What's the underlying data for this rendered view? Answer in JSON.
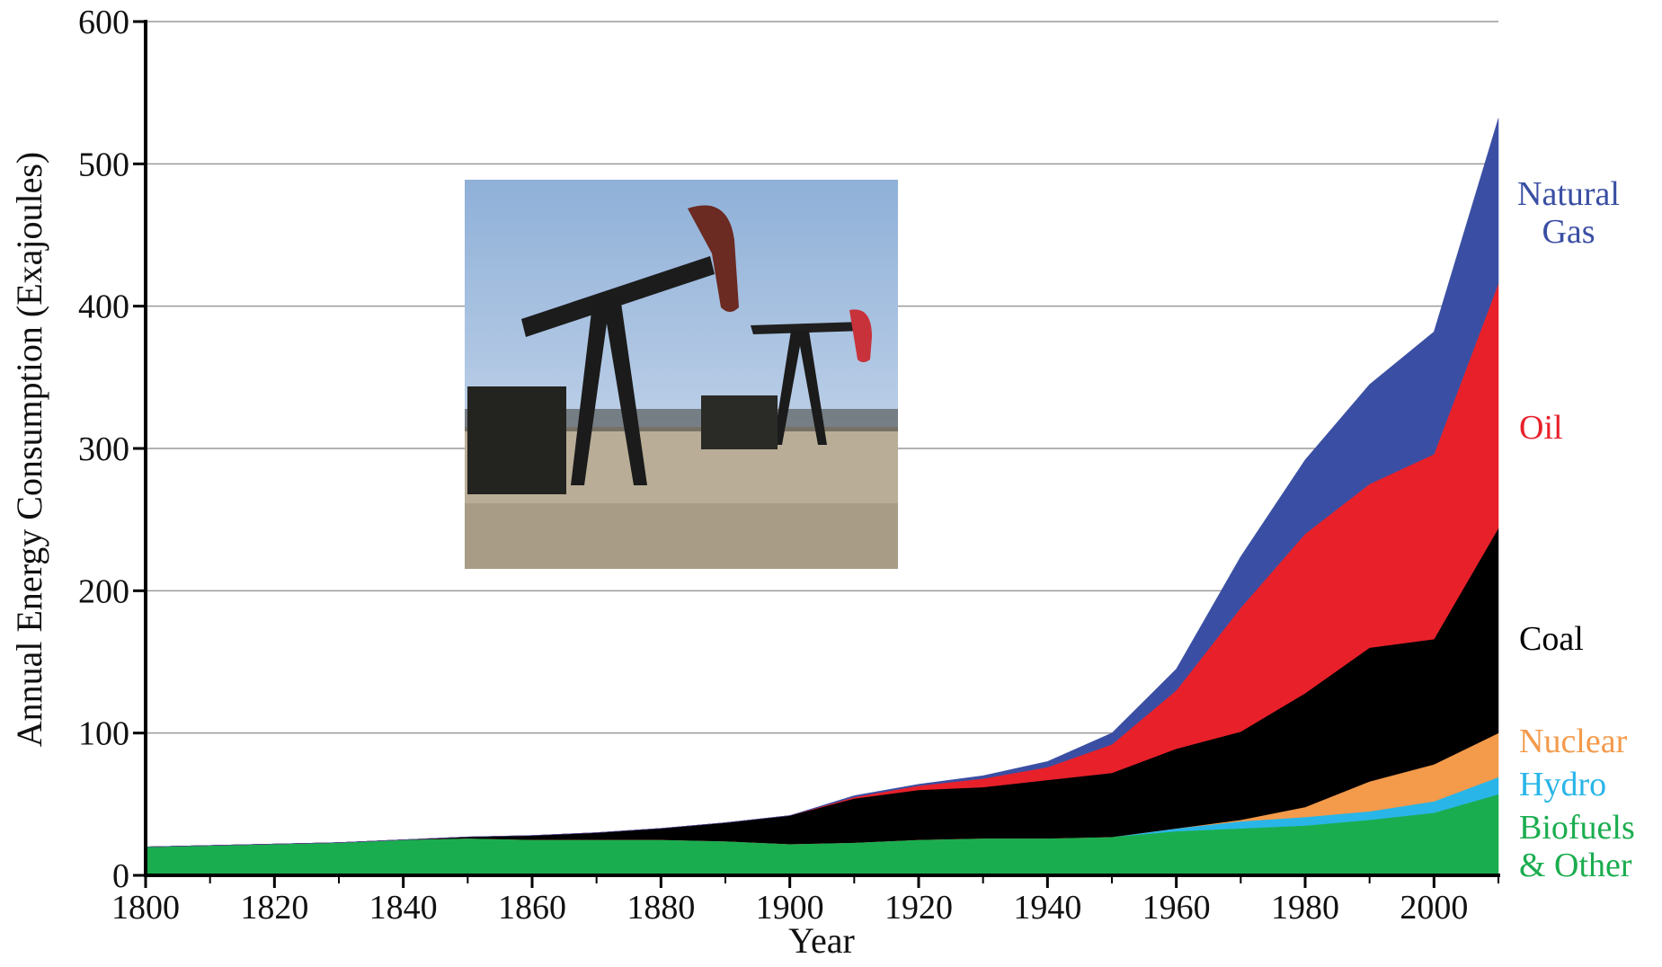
{
  "chart_data": {
    "type": "stacked-area",
    "x_label": "Year",
    "y_label": "Annual Energy Consumption (Exajoules)",
    "x": [
      1800,
      1810,
      1820,
      1830,
      1840,
      1850,
      1860,
      1870,
      1880,
      1890,
      1900,
      1910,
      1920,
      1930,
      1940,
      1950,
      1960,
      1970,
      1980,
      1990,
      2000,
      2010
    ],
    "xlim": [
      1800,
      2010
    ],
    "xticks": [
      1800,
      1820,
      1840,
      1860,
      1880,
      1900,
      1920,
      1940,
      1960,
      1980,
      2000
    ],
    "ylim": [
      0,
      600
    ],
    "yticks": [
      0,
      100,
      200,
      300,
      400,
      500,
      600
    ],
    "grid": true,
    "series": [
      {
        "name": "Biofuels & Other",
        "color": "#1aad4f",
        "values": [
          20,
          21,
          22,
          23,
          25,
          26,
          25,
          25,
          25,
          24,
          22,
          23,
          25,
          26,
          26,
          27,
          31,
          33,
          35,
          39,
          44,
          57
        ]
      },
      {
        "name": "Hydro",
        "color": "#29b5e8",
        "values": [
          0,
          0,
          0,
          0,
          0,
          0,
          0,
          0,
          0,
          0,
          0,
          0,
          0,
          0,
          0,
          0,
          2,
          5,
          6,
          6,
          8,
          12
        ]
      },
      {
        "name": "Nuclear",
        "color": "#f39a4b",
        "values": [
          0,
          0,
          0,
          0,
          0,
          0,
          0,
          0,
          0,
          0,
          0,
          0,
          0,
          0,
          0,
          0,
          0,
          1,
          7,
          21,
          26,
          31
        ]
      },
      {
        "name": "Coal",
        "color": "#000000",
        "values": [
          0,
          0,
          0,
          0,
          0,
          1,
          3,
          5,
          8,
          13,
          20,
          31,
          35,
          36,
          41,
          45,
          56,
          62,
          80,
          94,
          88,
          144
        ]
      },
      {
        "name": "Oil",
        "color": "#e8202a",
        "values": [
          0,
          0,
          0,
          0,
          0,
          0,
          0,
          0,
          0,
          0,
          0,
          1,
          3,
          6,
          9,
          20,
          41,
          87,
          112,
          115,
          130,
          172
        ]
      },
      {
        "name": "Natural Gas",
        "color": "#3a4fa3",
        "values": [
          0,
          0,
          0,
          0,
          0,
          0,
          0,
          0,
          0,
          0,
          0,
          1,
          1,
          2,
          4,
          8,
          15,
          36,
          52,
          70,
          86,
          116
        ]
      }
    ]
  }
}
